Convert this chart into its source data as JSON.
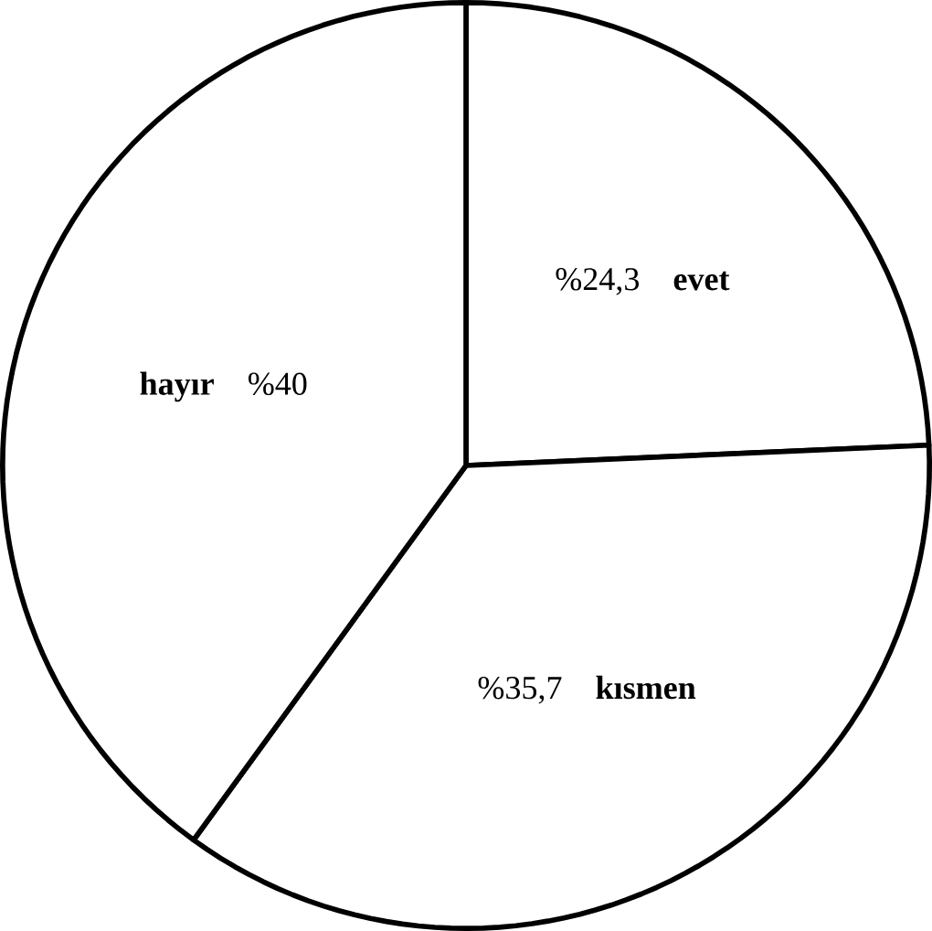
{
  "chart_data": {
    "type": "pie",
    "categories": [
      "evet",
      "kısmen",
      "hayır"
    ],
    "values": [
      24.3,
      35.7,
      40
    ],
    "value_labels": [
      "%24,3",
      "%35,7",
      "%40"
    ],
    "colors": [
      "#ffffff",
      "#ffffff",
      "#ffffff"
    ]
  }
}
